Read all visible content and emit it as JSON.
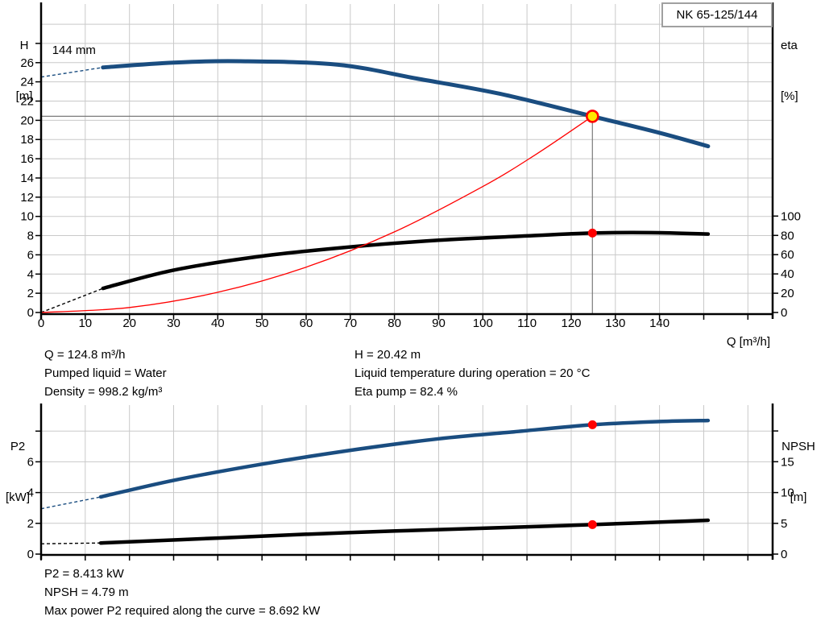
{
  "header": {
    "model": "NK 65-125/144"
  },
  "duty_info": {
    "q": "Q = 124.8 m³/h",
    "pumped_liquid": "Pumped liquid = Water",
    "density": "Density = 998.2 kg/m³",
    "h": "H = 20.42 m",
    "liquid_temperature": "Liquid temperature during operation = 20 °C",
    "eta_pump": "Eta pump = 82.4 %"
  },
  "power_info": {
    "p2": "P2 = 8.413 kW",
    "npsh": "NPSH = 4.79 m",
    "max_power": "Max power P2 required along the curve = 8.692 kW"
  },
  "colors": {
    "curve_blue": "#1a4d80",
    "curve_black": "#000000",
    "system_red": "#ff0000",
    "grid": "#c9c9c9",
    "guide_gray": "#7a7a7a",
    "duty_yellow": "#ffe800",
    "dot_red": "#ff0000"
  },
  "chart_data": [
    {
      "type": "line",
      "title": "NK 65-125/144",
      "x_axis": {
        "label": "Q [m³/h]",
        "min": 0,
        "max": 165.6,
        "tick_values": [
          0,
          10,
          20,
          30,
          40,
          50,
          60,
          70,
          80,
          90,
          100,
          110,
          120,
          130,
          140,
          150,
          160
        ],
        "labeled_ticks": [
          0,
          10,
          20,
          30,
          40,
          50,
          60,
          70,
          80,
          90,
          100,
          110,
          120,
          130,
          140
        ]
      },
      "y_left": {
        "label": "H [m]",
        "label_lines": [
          "H",
          "[m]"
        ],
        "min": 0,
        "max": 32.1,
        "tick_values": [
          0,
          2,
          4,
          6,
          8,
          10,
          12,
          14,
          16,
          18,
          20,
          22,
          24,
          26,
          28
        ],
        "labeled_ticks": [
          0,
          2,
          4,
          6,
          8,
          10,
          12,
          14,
          16,
          18,
          20,
          22,
          24,
          26
        ],
        "grid_values": [
          2,
          4,
          6,
          8,
          10,
          12,
          14,
          16,
          18,
          20,
          22,
          24,
          26,
          28,
          30
        ]
      },
      "y_right": {
        "label": "eta [%]",
        "label_lines": [
          "eta",
          "[%]"
        ],
        "min": 0,
        "max": 320.1,
        "tick_values": [
          0,
          20,
          40,
          60,
          80,
          100
        ],
        "labeled_ticks": [
          0,
          20,
          40,
          60,
          80,
          100
        ]
      },
      "series": [
        {
          "name": "head-curve-144mm",
          "label": "144 mm",
          "label_pos": {
            "q": 2.5,
            "value": 26.9
          },
          "axis": "left",
          "color": "#1a4d80",
          "width": 5,
          "dash_lead": [
            [
              0,
              24.5
            ],
            [
              14,
              25.5
            ]
          ],
          "points": [
            [
              14,
              25.5
            ],
            [
              30,
              26.0
            ],
            [
              45,
              26.15
            ],
            [
              67,
              25.8
            ],
            [
              85,
              24.35
            ],
            [
              104,
              22.75
            ],
            [
              124.8,
              20.42
            ],
            [
              140,
              18.7
            ],
            [
              151,
              17.3
            ]
          ]
        },
        {
          "name": "efficiency-curve",
          "axis": "right",
          "color": "#000000",
          "width": 4.5,
          "dash_lead": [
            [
              0,
              0
            ],
            [
              14,
              25
            ]
          ],
          "points": [
            [
              14,
              25
            ],
            [
              30,
              44
            ],
            [
              50,
              58.5
            ],
            [
              70,
              68
            ],
            [
              90,
              75
            ],
            [
              110,
              79.5
            ],
            [
              124.8,
              82.4
            ],
            [
              138,
              82.8
            ],
            [
              151,
              81.4
            ]
          ]
        },
        {
          "name": "system-curve",
          "axis": "left",
          "color": "#ff0000",
          "width": 1.3,
          "points": [
            [
              0,
              0
            ],
            [
              20,
              0.52
            ],
            [
              40,
              2.1
            ],
            [
              60,
              4.72
            ],
            [
              80,
              8.39
            ],
            [
              100,
              13.11
            ],
            [
              112,
              16.44
            ],
            [
              124.8,
              20.42
            ]
          ]
        }
      ],
      "guides": {
        "q": 124.8,
        "h": 20.42,
        "color": "#7a7a7a"
      },
      "markers": [
        {
          "type": "duty-point",
          "q": 124.8,
          "value": 20.42,
          "axis": "left",
          "fill": "#ffe800",
          "ring": "#ff0000"
        },
        {
          "type": "dot",
          "q": 124.8,
          "value": 82.4,
          "axis": "right",
          "fill": "#ff0000"
        }
      ]
    },
    {
      "type": "line",
      "title": "",
      "x_axis": {
        "label": "",
        "min": 0,
        "max": 165.6,
        "tick_values": [
          0,
          10,
          20,
          30,
          40,
          50,
          60,
          70,
          80,
          90,
          100,
          110,
          120,
          130,
          140,
          150,
          160
        ],
        "labeled_ticks": []
      },
      "y_left": {
        "label": "P2 [kW]",
        "label_lines": [
          "P2",
          "[kW]"
        ],
        "min": 0,
        "max": 9.69,
        "tick_values": [
          0,
          2,
          4,
          6,
          8
        ],
        "labeled_ticks": [
          0,
          2,
          4,
          6
        ],
        "grid_values": [
          2,
          4,
          6,
          8
        ]
      },
      "y_right": {
        "label": "NPSH [m]",
        "label_lines": [
          "NPSH",
          "[m]"
        ],
        "min": 0,
        "max": 24.2,
        "tick_values": [
          0,
          5,
          10,
          15,
          20
        ],
        "labeled_ticks": [
          0,
          5,
          10,
          15
        ]
      },
      "series": [
        {
          "name": "p2-curve",
          "axis": "left",
          "color": "#1a4d80",
          "width": 4.5,
          "dash_lead": [
            [
              0,
              2.95
            ],
            [
              13.5,
              3.72
            ]
          ],
          "points": [
            [
              13.5,
              3.72
            ],
            [
              30,
              4.8
            ],
            [
              50,
              5.85
            ],
            [
              70,
              6.75
            ],
            [
              90,
              7.5
            ],
            [
              107,
              7.95
            ],
            [
              124.8,
              8.413
            ],
            [
              140,
              8.62
            ],
            [
              151,
              8.692
            ]
          ]
        },
        {
          "name": "npsh-curve",
          "axis": "right",
          "color": "#000000",
          "width": 4.5,
          "dash_lead": [
            [
              0,
              1.68
            ],
            [
              13.5,
              1.8
            ]
          ],
          "points": [
            [
              13.5,
              1.8
            ],
            [
              40,
              2.6
            ],
            [
              70,
              3.5
            ],
            [
              100,
              4.2
            ],
            [
              124.8,
              4.79
            ],
            [
              151,
              5.5
            ]
          ]
        }
      ],
      "markers": [
        {
          "type": "dot",
          "q": 124.8,
          "value": 8.413,
          "axis": "left",
          "fill": "#ff0000"
        },
        {
          "type": "dot",
          "q": 124.8,
          "value": 4.79,
          "axis": "right",
          "fill": "#ff0000"
        }
      ]
    }
  ]
}
